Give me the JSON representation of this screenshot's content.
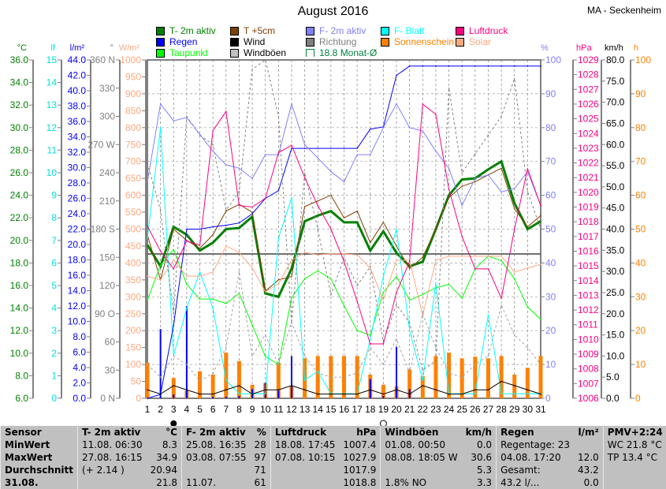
{
  "title": "August 2016",
  "station": "MA - Seckenheim",
  "legend": [
    {
      "label": "T- 2m aktiv",
      "color": "#008000"
    },
    {
      "label": "T +5cm",
      "color": "#804000"
    },
    {
      "label": "F- 2m aktiv",
      "color": "#8080ff"
    },
    {
      "label": "F- Blatt",
      "color": "#00ffff"
    },
    {
      "label": "Luftdruck",
      "color": "#ff0080"
    },
    {
      "label": "Regen",
      "color": "#0000ff"
    },
    {
      "label": "Wind",
      "color": "#000000"
    },
    {
      "label": "Richtung",
      "color": "#808080"
    },
    {
      "label": "Sonnenschein",
      "color": "#ff8000"
    },
    {
      "label": "Solar",
      "color": "#ffa880"
    },
    {
      "label": "Taupunkt",
      "color": "#00ff00"
    },
    {
      "label": "Windböen",
      "color": "#c0c0c0"
    },
    {
      "label": "18.8 Monat-Ø",
      "color": "#008040"
    }
  ],
  "chart_data": {
    "type": "line",
    "x": [
      1,
      2,
      3,
      4,
      5,
      6,
      7,
      8,
      9,
      10,
      11,
      12,
      13,
      14,
      15,
      16,
      17,
      18,
      19,
      20,
      21,
      22,
      23,
      24,
      25,
      26,
      27,
      28,
      29,
      30,
      31
    ],
    "axes": {
      "left": [
        {
          "unit": "°C",
          "range": [
            6,
            36
          ],
          "ticks": [
            "36.0",
            "34.0",
            "32.0",
            "30.0",
            "28.0",
            "26.0",
            "24.0",
            "22.0",
            "20.0",
            "18.0",
            "16.0",
            "14.0",
            "12.0",
            "10.0",
            "8.0",
            "6.0"
          ],
          "color": "#008000"
        },
        {
          "unit": "lf",
          "range": [
            0,
            15
          ],
          "ticks": [
            "15",
            "14",
            "13",
            "12",
            "11",
            "10",
            "9",
            "8",
            "7",
            "6",
            "5",
            "4",
            "3",
            "2",
            "1",
            "0"
          ],
          "color": "#00e0e0"
        },
        {
          "unit": "l/m²",
          "range": [
            0,
            44
          ],
          "ticks": [
            "44.0",
            "42.0",
            "40.0",
            "38.0",
            "36.0",
            "34.0",
            "32.0",
            "30.0",
            "28.0",
            "26.0",
            "24.0",
            "22.0",
            "20.0",
            "18.0",
            "16.0",
            "14.0",
            "12.0",
            "10.0",
            "8.0",
            "6.0",
            "4.0",
            "2.0",
            "0.0"
          ],
          "color": "#0000ff"
        },
        {
          "unit": "°",
          "range": [
            0,
            360
          ],
          "ticks": [
            "360 N",
            "330",
            "300",
            "270 W",
            "240",
            "210",
            "180 S",
            "150",
            "120",
            "90 O",
            "60",
            "30",
            "0 N"
          ],
          "color": "#808080"
        },
        {
          "unit": "W/m²",
          "range": [
            0,
            1000
          ],
          "ticks": [
            "1000",
            "950",
            "900",
            "850",
            "800",
            "750",
            "700",
            "650",
            "600",
            "550",
            "500",
            "450",
            "400",
            "350",
            "300",
            "250",
            "200",
            "150",
            "100",
            "50",
            "0"
          ],
          "color": "#ffa880"
        }
      ],
      "right": [
        {
          "unit": "%",
          "range": [
            0,
            100
          ],
          "ticks": [
            "100",
            "90",
            "80",
            "70",
            "60",
            "50",
            "40",
            "30",
            "20",
            "10",
            "0"
          ],
          "color": "#8080ff"
        },
        {
          "unit": "hPa",
          "range": [
            1006,
            1029
          ],
          "ticks": [
            "1029",
            "1028",
            "1027",
            "1026",
            "1025",
            "1024",
            "1023",
            "1022",
            "1021",
            "1020",
            "1019",
            "1018",
            "1017",
            "1016",
            "1015",
            "1014",
            "1013",
            "1012",
            "1011",
            "1010",
            "1009",
            "1008",
            "1007",
            "1006"
          ],
          "color": "#ff0080"
        },
        {
          "unit": "km/h",
          "range": [
            0,
            80
          ],
          "ticks": [
            "80.0",
            "75.0",
            "70.0",
            "65.0",
            "60.0",
            "55.0",
            "50.0",
            "45.0",
            "40.0",
            "35.0",
            "30.0",
            "25.0",
            "20.0",
            "15.0",
            "10.0",
            "5.0",
            "0.0"
          ],
          "color": "#000000"
        },
        {
          "unit": "h",
          "range": [
            0,
            100
          ],
          "ticks": [
            "100",
            "90",
            "80",
            "70",
            "60",
            "50",
            "40",
            "30",
            "20",
            "10",
            "0"
          ],
          "color": "#ff8000"
        }
      ]
    },
    "monthly_mean_C": 18.8,
    "moon": {
      "new": 3,
      "full": 19
    },
    "series": [
      {
        "name": "T- 2m aktiv",
        "axis": "°C",
        "color": "#008000",
        "values": [
          19.6,
          17.7,
          21.2,
          20.5,
          19.1,
          19.8,
          21.0,
          21.1,
          22.1,
          15.3,
          15.0,
          17.5,
          21.7,
          22.2,
          22.6,
          21.6,
          21.6,
          19.1,
          20.8,
          18.9,
          17.7,
          18.1,
          21.0,
          24.0,
          25.4,
          25.5,
          26.3,
          27.0,
          23.3,
          21.0,
          21.7
        ]
      },
      {
        "name": "T +5cm",
        "axis": "°C",
        "color": "#804000",
        "values": [
          20.5,
          16.5,
          21.0,
          20.0,
          19.3,
          20.5,
          22.6,
          23.2,
          22.5,
          15.5,
          16.5,
          16.8,
          23.0,
          23.5,
          24.0,
          22.0,
          22.6,
          19.8,
          21.6,
          19.5,
          17.5,
          18.5,
          21.0,
          23.8,
          24.8,
          25.2,
          25.8,
          26.4,
          22.8,
          21.2,
          22.2
        ]
      },
      {
        "name": "Taupunkt",
        "axis": "°C",
        "color": "#00ff00",
        "values": [
          14.7,
          17.8,
          19.2,
          16.1,
          14.8,
          14.8,
          14.4,
          15.3,
          12.5,
          9.7,
          9.0,
          14.9,
          16.6,
          17.3,
          16.6,
          14.2,
          12.0,
          11.6,
          15.4,
          16.8,
          14.7,
          15.2,
          15.8,
          16.1,
          14.9,
          17.5,
          18.6,
          18.2,
          16.6,
          14.1,
          13.0
        ]
      },
      {
        "name": "F- Blatt",
        "axis": "lf",
        "color": "#00ffff",
        "values": [
          7.1,
          12.0,
          1.9,
          4.0,
          5.6,
          4.0,
          0.8,
          0.2,
          0.2,
          0.2,
          7.1,
          8.9,
          0.8,
          1.2,
          0.2,
          0.2,
          0.2,
          2.6,
          5.4,
          7.5,
          3.0,
          0.8,
          5.1,
          0.2,
          0.2,
          0.2,
          3.7,
          0.2,
          0.2,
          0.2,
          0.2
        ]
      },
      {
        "name": "Regen",
        "axis": "l/m²",
        "color": "#0000ff",
        "values": [
          0,
          0.5,
          9.5,
          22,
          22,
          22.3,
          22.5,
          22.8,
          24,
          26,
          27,
          32.5,
          32.5,
          32.5,
          32.5,
          32.5,
          32.5,
          35,
          35.3,
          42,
          43.2,
          43.2,
          43.2,
          43.2,
          43.2,
          43.2,
          43.2,
          43.2,
          43.2,
          43.2,
          43.2
        ]
      },
      {
        "name": "Richtung",
        "axis": "°",
        "color": "#808080",
        "values": [
          250,
          200,
          90,
          300,
          280,
          270,
          200,
          220,
          350,
          360,
          300,
          80,
          240,
          180,
          110,
          150,
          120,
          140,
          60,
          100,
          80,
          30,
          40,
          330,
          240,
          260,
          280,
          300,
          340,
          220,
          180
        ]
      },
      {
        "name": "Solar",
        "axis": "W/m²",
        "color": "#ffa880",
        "values": [
          361,
          350,
          408,
          361,
          361,
          373,
          450,
          431,
          385,
          315,
          338,
          408,
          431,
          424,
          427,
          427,
          424,
          385,
          291,
          408,
          408,
          245,
          408,
          420,
          420,
          420,
          420,
          420,
          373,
          385,
          396
        ]
      },
      {
        "name": "F- 2m aktiv",
        "axis": "%",
        "color": "#8080ff",
        "values": [
          64,
          87,
          82,
          83,
          78,
          73,
          69,
          68,
          65,
          72,
          72,
          87,
          75,
          71,
          67,
          64,
          72,
          72,
          80,
          87,
          80,
          79,
          73,
          68,
          57,
          65,
          66,
          61,
          62,
          67,
          57
        ]
      },
      {
        "name": "Luftdruck",
        "axis": "hPa",
        "color": "#ff0080",
        "values": [
          1017.7,
          1016.0,
          1014.8,
          1016.7,
          1016.4,
          1024.2,
          1025.5,
          1019.1,
          1019.0,
          1019.6,
          1022.7,
          1023.2,
          1021.0,
          1019.1,
          1017.5,
          1015.3,
          1012.6,
          1009.7,
          1009.7,
          1013.2,
          1015.3,
          1026.0,
          1025.3,
          1020.2,
          1017.0,
          1014.8,
          1014.8,
          1012.8,
          1017.5,
          1021.6,
          1019.1
        ]
      },
      {
        "name": "Wind",
        "axis": "km/h",
        "color": "#000000",
        "values": [
          2,
          1,
          3,
          2,
          1,
          1,
          2,
          3,
          1,
          2,
          2,
          3,
          2,
          1,
          1,
          1,
          1,
          2,
          1,
          2,
          1,
          3,
          2,
          1,
          1,
          2,
          2,
          4,
          3,
          2,
          1
        ]
      },
      {
        "name": "Windböen",
        "axis": "km/h",
        "color": "#a0a0a0",
        "values": [
          8,
          5,
          10,
          8,
          4,
          6,
          12,
          30,
          10,
          15,
          8,
          18,
          10,
          6,
          5,
          5,
          6,
          12,
          8,
          14,
          6,
          20,
          12,
          6,
          5,
          8,
          10,
          22,
          15,
          12,
          8
        ]
      }
    ],
    "bars": [
      {
        "name": "Sonnenschein",
        "axis": "h",
        "color": "#ff8000",
        "values": [
          10.5,
          0,
          6,
          2.3,
          8,
          7,
          13.5,
          11,
          4,
          4.5,
          10.5,
          3.5,
          11.8,
          12.5,
          12.5,
          12.5,
          12.5,
          7,
          4,
          3.5,
          8.5,
          6.5,
          12.5,
          13.5,
          11.8,
          12.3,
          11.8,
          12.5,
          7,
          9,
          12.5
        ]
      },
      {
        "name": "Regen (Tag)",
        "axis": "l/m²",
        "color": "#0000ff",
        "values": [
          0,
          9,
          0.5,
          12,
          0,
          0.2,
          0.2,
          0.3,
          1.2,
          2,
          1,
          5.5,
          0,
          0,
          0,
          0,
          0,
          2.5,
          0.3,
          6.7,
          1.2,
          0,
          0,
          0,
          0,
          0,
          0,
          0,
          0,
          0,
          0
        ]
      }
    ]
  },
  "table": {
    "header": [
      "Sensor",
      "T- 2m aktiv",
      "°C",
      "F- 2m aktiv",
      "%",
      "Luftdruck",
      "hPa",
      "Windböen",
      "km/h",
      "Regen",
      "l/m²",
      "PMV+2:24",
      ""
    ],
    "rows": [
      [
        "MinWert",
        "11.08.  06:30",
        "8.3",
        "25.08.  16:35",
        "28",
        "18.08.  17:45",
        "1007.4",
        "01.08.  00:50",
        "0.0",
        "Regentage: 23",
        "",
        "WC 21.8 °C",
        ""
      ],
      [
        "MaxWert",
        "27.08.  16:15",
        "34.9",
        "03.08.  07:55",
        "97",
        "07.08.  10:15",
        "1027.9",
        "08.08.  18:05 W",
        "30.6",
        "04.08.  17:20",
        "12.0",
        "TP 13.4 °C",
        ""
      ],
      [
        "Durchschnitt",
        "(+ 2.14 )",
        "20.94",
        "",
        "71",
        "",
        "1017.9",
        "",
        "5.3",
        "Gesamt:",
        "43.2",
        "",
        ""
      ],
      [
        "31.08.",
        "",
        "21.8",
        "11.07.",
        "61",
        "",
        "1018.8",
        "1.8% NO",
        "3.3",
        "43.2 l/...",
        "0.0",
        "",
        ""
      ]
    ]
  }
}
